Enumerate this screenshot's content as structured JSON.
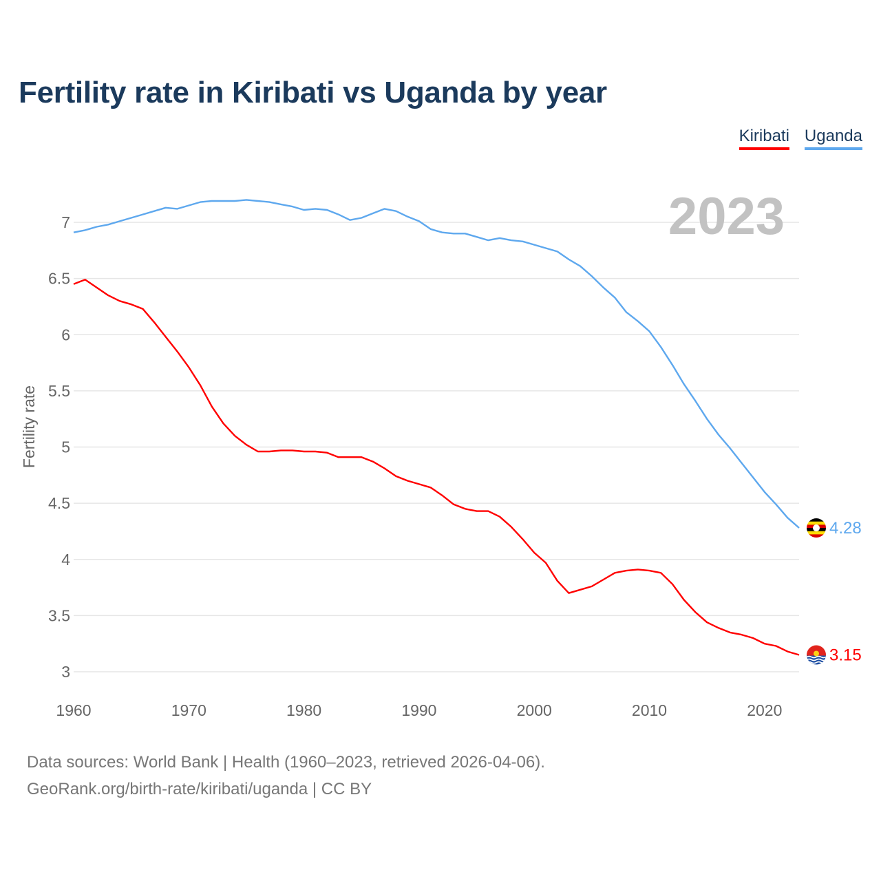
{
  "chart_data": {
    "type": "line",
    "title": "Fertility rate in Kiribati vs Uganda by year",
    "ylabel": "Fertility rate",
    "xlabel": "",
    "xlim": [
      1960,
      2023
    ],
    "ylim": [
      3,
      7.2
    ],
    "yticks": [
      "3",
      "3.5",
      "4",
      "4.5",
      "5",
      "5.5",
      "6",
      "6.5",
      "7"
    ],
    "xticks": [
      "1960",
      "1970",
      "1980",
      "1990",
      "2000",
      "2010",
      "2020"
    ],
    "grid": true,
    "legend_position": "top-right",
    "year_watermark": "2023",
    "x_start": 1960,
    "series": [
      {
        "name": "Kiribati",
        "color": "#ff0000",
        "end_label": "3.15",
        "flag": "kiribati-flag",
        "values": [
          6.45,
          6.49,
          6.42,
          6.35,
          6.3,
          6.27,
          6.23,
          6.11,
          5.98,
          5.85,
          5.71,
          5.55,
          5.36,
          5.21,
          5.1,
          5.02,
          4.96,
          4.96,
          4.97,
          4.97,
          4.96,
          4.96,
          4.95,
          4.91,
          4.91,
          4.91,
          4.87,
          4.81,
          4.74,
          4.7,
          4.67,
          4.64,
          4.57,
          4.49,
          4.45,
          4.43,
          4.43,
          4.38,
          4.29,
          4.18,
          4.06,
          3.97,
          3.81,
          3.7,
          3.73,
          3.76,
          3.82,
          3.88,
          3.9,
          3.91,
          3.9,
          3.88,
          3.78,
          3.64,
          3.53,
          3.44,
          3.39,
          3.35,
          3.33,
          3.3,
          3.25,
          3.23,
          3.18,
          3.15
        ]
      },
      {
        "name": "Uganda",
        "color": "#5ea8ee",
        "end_label": "4.28",
        "flag": "uganda-flag",
        "values": [
          6.91,
          6.93,
          6.96,
          6.98,
          7.01,
          7.04,
          7.07,
          7.1,
          7.13,
          7.12,
          7.15,
          7.18,
          7.19,
          7.19,
          7.19,
          7.2,
          7.19,
          7.18,
          7.16,
          7.14,
          7.11,
          7.12,
          7.11,
          7.07,
          7.02,
          7.04,
          7.08,
          7.12,
          7.1,
          7.05,
          7.01,
          6.94,
          6.91,
          6.9,
          6.9,
          6.87,
          6.84,
          6.86,
          6.84,
          6.83,
          6.8,
          6.77,
          6.74,
          6.67,
          6.61,
          6.52,
          6.42,
          6.33,
          6.2,
          6.12,
          6.03,
          5.89,
          5.73,
          5.56,
          5.41,
          5.25,
          5.11,
          4.99,
          4.86,
          4.73,
          4.6,
          4.49,
          4.37,
          4.28
        ]
      }
    ]
  },
  "footer": {
    "line1": "Data sources: World Bank | Health (1960–2023, retrieved 2026-04-06).",
    "line2": "GeoRank.org/birth-rate/kiribati/uganda | CC BY"
  }
}
